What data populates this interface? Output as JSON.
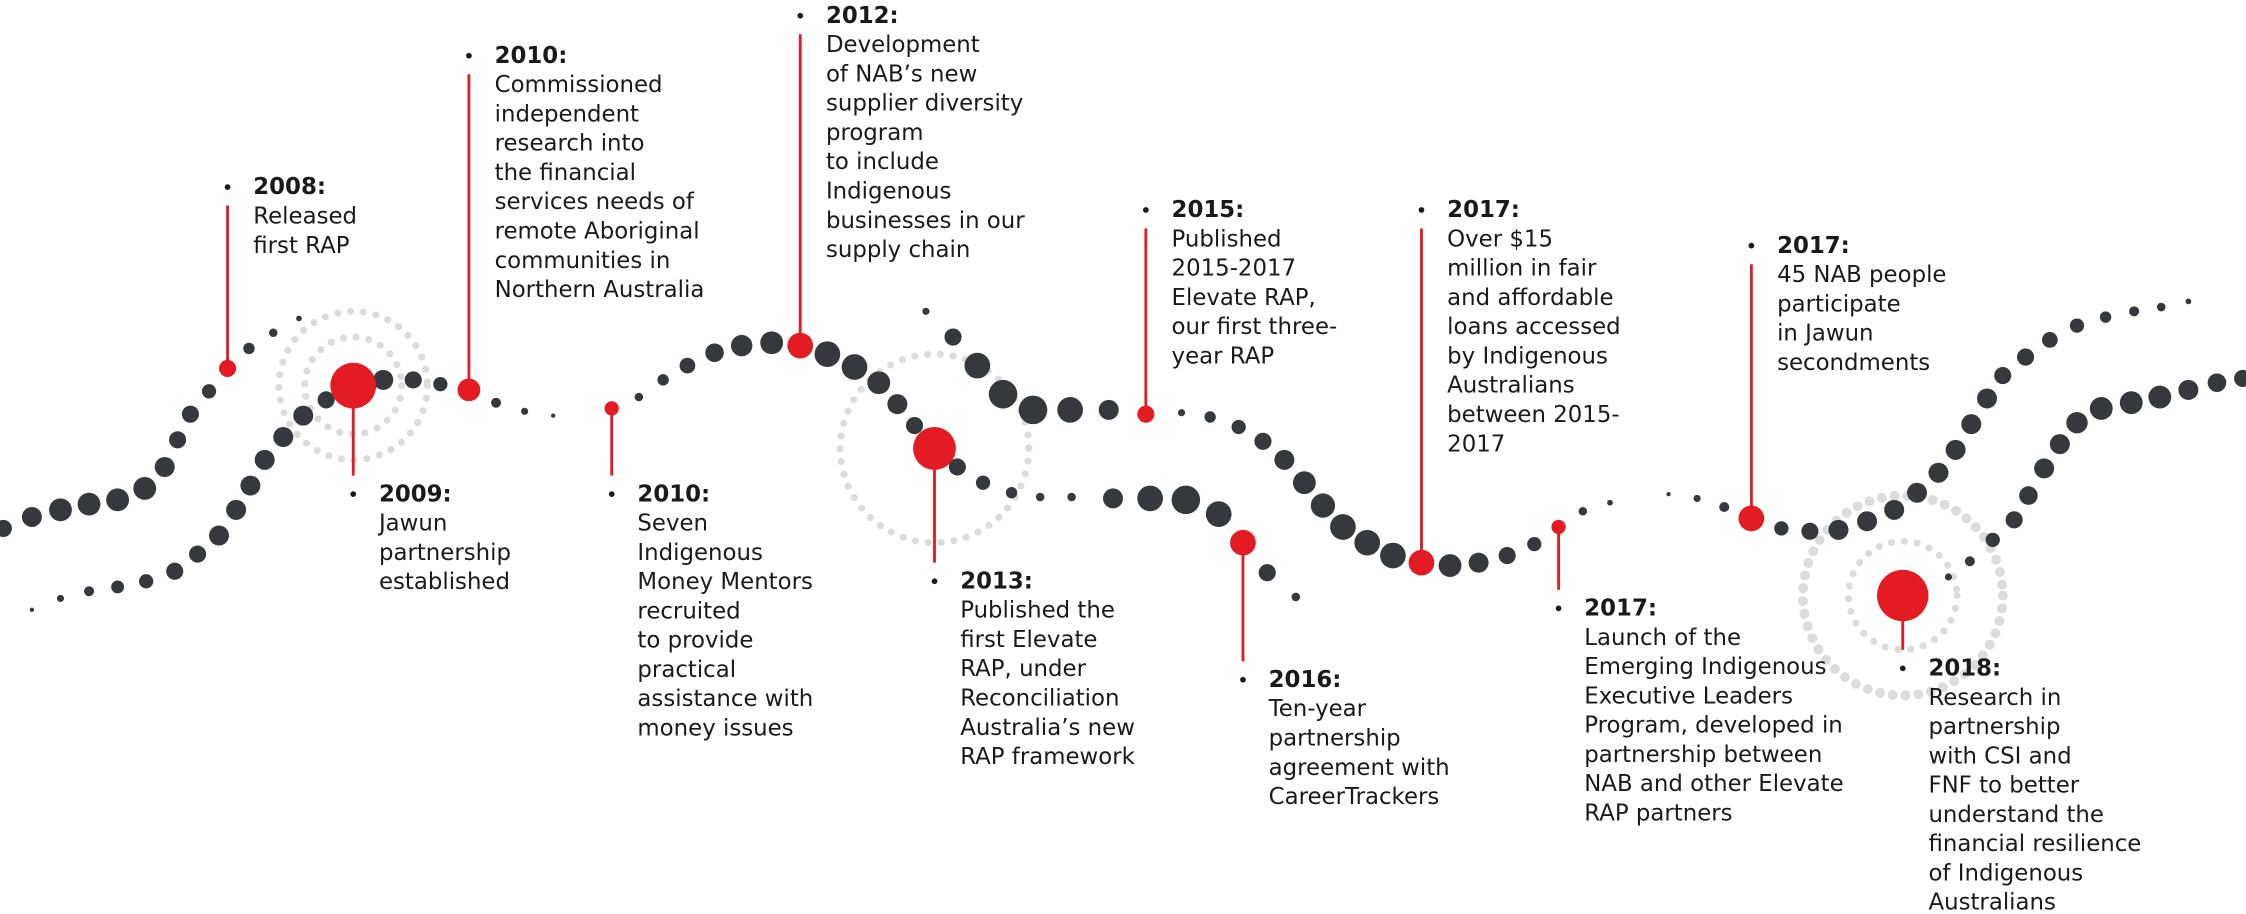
{
  "events": [
    {
      "year": "2008:",
      "lines": [
        "Released",
        "first RAP"
      ]
    },
    {
      "year": "2009:",
      "lines": [
        "Jawun",
        "partnership",
        "established"
      ]
    },
    {
      "year": "2010:",
      "lines": [
        "Commissioned",
        "independent",
        "research into",
        "the financial",
        "services needs of",
        "remote Aboriginal",
        "communities in",
        "Northern Australia"
      ]
    },
    {
      "year": "2010:",
      "lines": [
        "Seven",
        "Indigenous",
        "Money Mentors",
        "recruited",
        "to provide",
        "practical",
        "assistance with",
        "money issues"
      ]
    },
    {
      "year": "2012:",
      "lines": [
        "Development",
        "of NAB’s new",
        "supplier diversity",
        "program",
        "to include",
        "Indigenous",
        "businesses in our",
        "supply chain"
      ]
    },
    {
      "year": "2013:",
      "lines": [
        "Published the",
        "first Elevate",
        "RAP, under",
        "Reconciliation",
        "Australia’s new",
        "RAP framework"
      ]
    },
    {
      "year": "2015:",
      "lines": [
        "Published",
        "2015-2017",
        "Elevate RAP,",
        "our first three-",
        "year RAP"
      ]
    },
    {
      "year": "2016:",
      "lines": [
        "Ten-year",
        "partnership",
        "agreement with",
        "CareerTrackers"
      ]
    },
    {
      "year": "2017:",
      "lines": [
        "Over $15",
        "million in fair",
        "and affordable",
        "loans accessed",
        "by Indigenous",
        "Australians",
        "between 2015-",
        "2017"
      ]
    },
    {
      "year": "2017:",
      "lines": [
        "Launch of the",
        "Emerging Indigenous",
        "Executive Leaders",
        "Program, developed in",
        "partnership between",
        "NAB and other Elevate",
        "RAP partners"
      ]
    },
    {
      "year": "2017:",
      "lines": [
        "45 NAB people",
        "participate",
        "in Jawun",
        "secondments"
      ]
    },
    {
      "year": "2018:",
      "lines": [
        "Research in",
        "partnership",
        "with CSI and",
        "FNF to better",
        "understand the",
        "financial resilience",
        "of Indigenous",
        "Australians"
      ]
    }
  ]
}
